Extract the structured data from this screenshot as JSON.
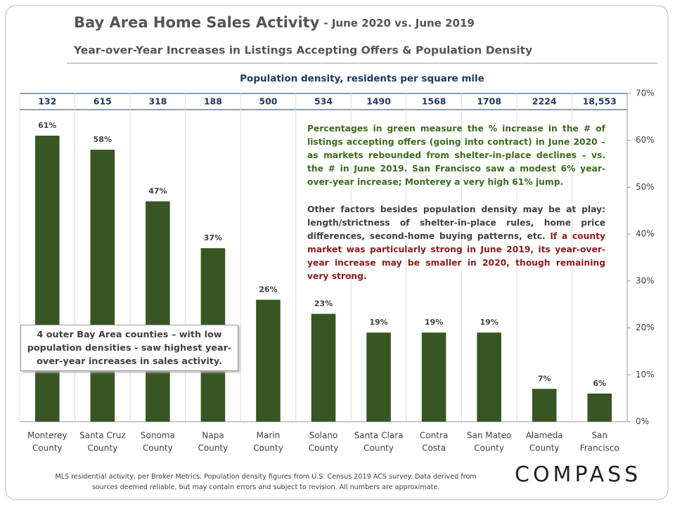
{
  "chart_data": {
    "type": "bar",
    "title": "Bay Area Home Sales Activity",
    "title_suffix": "- June 2020 vs. June 2019",
    "subtitle": "Year-over-Year  Increases in Listings Accepting Offers & Population Density",
    "categories": [
      [
        "Monterey",
        "County"
      ],
      [
        "Santa Cruz",
        "County"
      ],
      [
        "Sonoma",
        "County"
      ],
      [
        "Napa",
        "County"
      ],
      [
        "Marin",
        "County"
      ],
      [
        "Solano",
        "County"
      ],
      [
        "Santa Clara",
        "County"
      ],
      [
        "Contra",
        "Costa"
      ],
      [
        "San Mateo",
        "County"
      ],
      [
        "Alameda",
        "County"
      ],
      [
        "San",
        "Francisco"
      ]
    ],
    "values": [
      61,
      58,
      47,
      37,
      26,
      23,
      19,
      19,
      19,
      7,
      6
    ],
    "value_labels": [
      "61%",
      "58%",
      "47%",
      "37%",
      "26%",
      "23%",
      "19%",
      "19%",
      "19%",
      "7%",
      "6%"
    ],
    "color": "#375623",
    "ylim": [
      0,
      70
    ],
    "yticks": [
      {
        "value": 0,
        "label": "0%"
      },
      {
        "value": 10,
        "label": "10%"
      },
      {
        "value": 20,
        "label": "20%"
      },
      {
        "value": 30,
        "label": "30%"
      },
      {
        "value": 40,
        "label": "40%"
      },
      {
        "value": 50,
        "label": "50%"
      },
      {
        "value": 60,
        "label": "60%"
      },
      {
        "value": 70,
        "label": "70%"
      }
    ],
    "density": {
      "title": "Population  density, residents per square mile",
      "values": [
        132,
        615,
        318,
        188,
        500,
        534,
        1490,
        1568,
        1708,
        2224,
        18553
      ],
      "value_labels": [
        "132",
        "615",
        "318",
        "188",
        "500",
        "534",
        "1490",
        "1568",
        "1708",
        "2224",
        "18,553"
      ]
    },
    "notes": [
      "Percentages in green measure the % increase in the # of listings accepting offers (going into contract) in June 2020 – as markets rebounded from shelter-in-place declines – vs. the # in June 2019. San Francisco saw a modest 6% year-over-year increase; Monterey a very high 61% jump.",
      "Other factors besides population density may be at play: length/strictness of shelter-in-place rules, home price differences, second-home buying patterns, etc.",
      "If a county market was particularly strong in June 2019, its year-over-year increase may be smaller in 2020, though remaining very strong."
    ],
    "callout": "4 outer Bay Area counties – with low population densities - saw highest year-over-year increases in sales activity."
  },
  "footer": "MLS residential activity, per Broker Metrics. Population density figures from U.S. Census 2019 ACS survey. Data derived from sources deemed reliable, but may contain errors and subject to revision.  All numbers are approximate.",
  "logo": "COMPASS"
}
